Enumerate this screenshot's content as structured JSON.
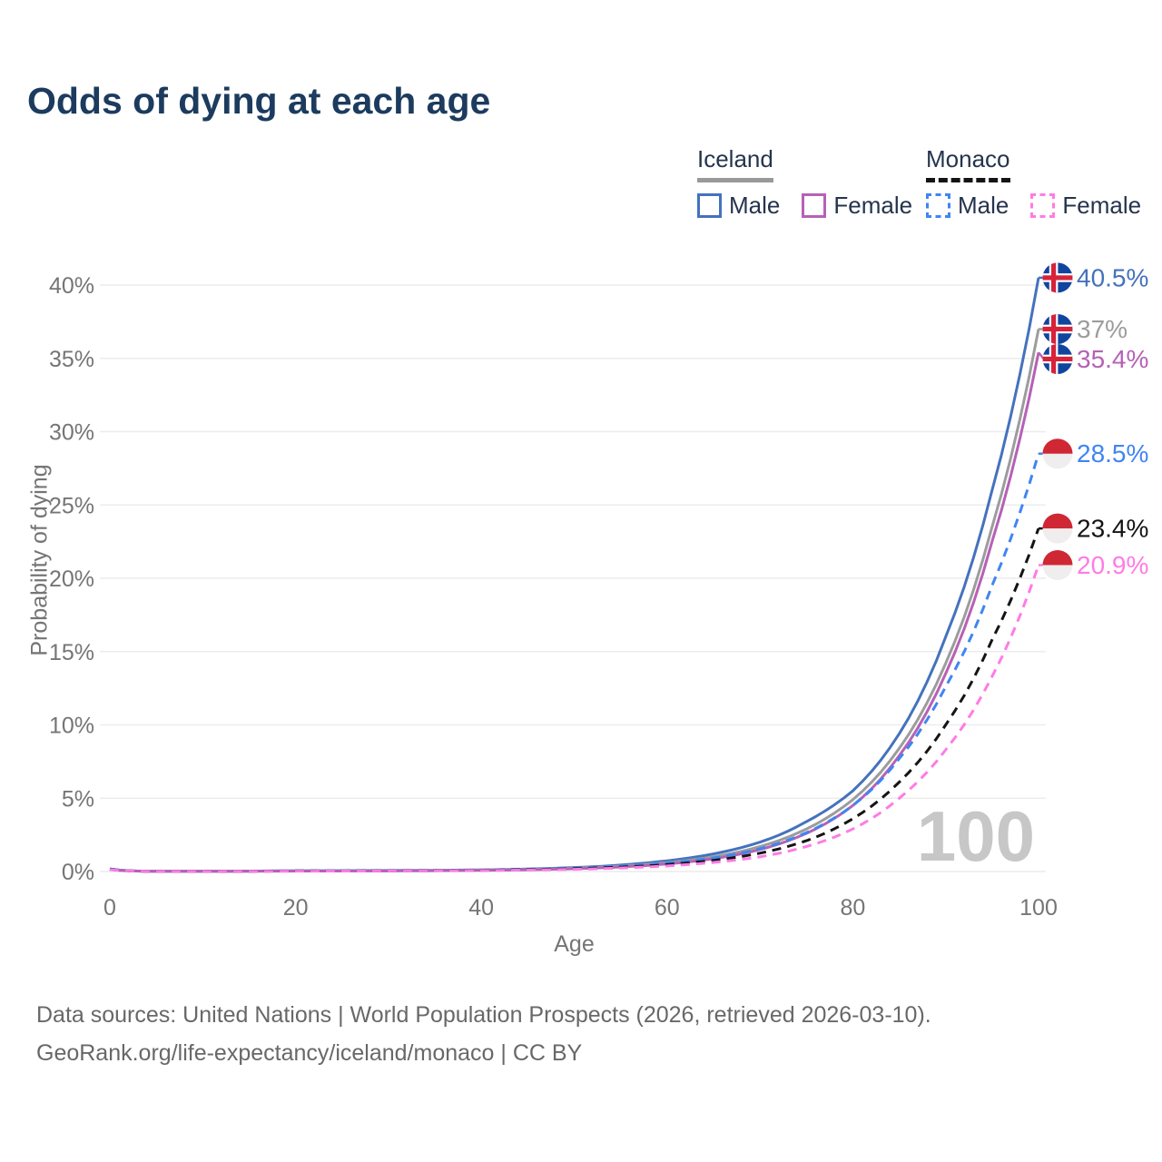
{
  "title": "Odds of dying at each age",
  "legend": {
    "groups": [
      {
        "country": "Iceland",
        "line_style": "solid",
        "underline_color": "#999999",
        "items": [
          {
            "label": "Male",
            "color": "#4472bd"
          },
          {
            "label": "Female",
            "color": "#b661b6"
          }
        ]
      },
      {
        "country": "Monaco",
        "line_style": "dashed",
        "underline_color": "#141414",
        "items": [
          {
            "label": "Male",
            "color": "#3f85f2"
          },
          {
            "label": "Female",
            "color": "#ff7be5"
          }
        ]
      }
    ]
  },
  "chart_data": {
    "type": "line",
    "title": "Odds of dying at each age",
    "xlabel": "Age",
    "ylabel": "Probability of dying",
    "xlim": [
      0,
      100
    ],
    "ylim": [
      0,
      42
    ],
    "x_ticks": [
      "0",
      "20",
      "40",
      "60",
      "80",
      "100"
    ],
    "y_ticks": [
      "0%",
      "5%",
      "10%",
      "15%",
      "20%",
      "25%",
      "30%",
      "35%",
      "40%"
    ],
    "grid": "horizontal",
    "legend_position": "top-right",
    "watermark_age": "100",
    "ages": [
      0,
      5,
      10,
      15,
      20,
      25,
      30,
      35,
      40,
      45,
      50,
      55,
      60,
      65,
      70,
      75,
      80,
      85,
      90,
      95,
      100
    ],
    "series": [
      {
        "name": "Iceland Male",
        "country": "iceland",
        "sex": "Male",
        "line_style": "solid",
        "color": "#4472bd",
        "end_label": "40.5%",
        "values": [
          0.18,
          0.01,
          0.01,
          0.03,
          0.05,
          0.06,
          0.07,
          0.08,
          0.11,
          0.17,
          0.27,
          0.44,
          0.73,
          1.2,
          2.0,
          3.4,
          5.5,
          9.4,
          16.0,
          26.0,
          40.5
        ]
      },
      {
        "name": "Iceland Both sexes",
        "country": "iceland",
        "sex": "Both sexes",
        "line_style": "solid",
        "color": "#9c9c9c",
        "end_label": "37%",
        "values": [
          0.16,
          0.01,
          0.01,
          0.025,
          0.04,
          0.05,
          0.055,
          0.07,
          0.09,
          0.14,
          0.23,
          0.37,
          0.61,
          1.0,
          1.7,
          2.9,
          4.9,
          8.4,
          14.2,
          23.5,
          37.0
        ]
      },
      {
        "name": "Iceland Female",
        "country": "iceland",
        "sex": "Female",
        "line_style": "solid",
        "color": "#b661b6",
        "end_label": "35.4%",
        "values": [
          0.14,
          0.01,
          0.01,
          0.02,
          0.03,
          0.035,
          0.04,
          0.055,
          0.08,
          0.12,
          0.19,
          0.31,
          0.52,
          0.87,
          1.5,
          2.6,
          4.5,
          7.9,
          13.5,
          22.5,
          35.4
        ]
      },
      {
        "name": "Monaco Male",
        "country": "monaco",
        "sex": "Male",
        "line_style": "dashed",
        "color": "#3f85f2",
        "end_label": "28.5%",
        "values": [
          0.17,
          0.01,
          0.01,
          0.025,
          0.045,
          0.05,
          0.06,
          0.07,
          0.1,
          0.15,
          0.23,
          0.36,
          0.57,
          0.93,
          1.55,
          2.65,
          4.5,
          7.7,
          12.6,
          19.5,
          28.5
        ]
      },
      {
        "name": "Monaco Both sexes",
        "country": "monaco",
        "sex": "Both sexes",
        "line_style": "dashed",
        "color": "#141414",
        "end_label": "23.4%",
        "values": [
          0.15,
          0.008,
          0.008,
          0.02,
          0.035,
          0.04,
          0.05,
          0.06,
          0.085,
          0.13,
          0.19,
          0.3,
          0.47,
          0.76,
          1.25,
          2.1,
          3.6,
          6.1,
          10.0,
          15.8,
          23.4
        ]
      },
      {
        "name": "Monaco Female",
        "country": "monaco",
        "sex": "Female",
        "line_style": "dashed",
        "color": "#ff7be5",
        "end_label": "20.9%",
        "values": [
          0.13,
          0.007,
          0.007,
          0.015,
          0.025,
          0.03,
          0.04,
          0.05,
          0.07,
          0.1,
          0.15,
          0.24,
          0.38,
          0.62,
          1.0,
          1.7,
          2.9,
          5.0,
          8.3,
          13.3,
          20.9
        ]
      }
    ],
    "flags": {
      "iceland": {
        "type": "nordic-cross",
        "field": "#10459e",
        "cross": "#d7233a",
        "fimbriation": "#ffffff"
      },
      "monaco": {
        "type": "bicolor",
        "top": "#cf2734",
        "bottom": "#efeded"
      }
    },
    "colors": {
      "grid": "#ececec",
      "axis_text": "#757575",
      "watermark": "#c7c7c7"
    }
  },
  "footer": {
    "line1": "Data sources: United Nations | World Population Prospects (2026, retrieved 2026-03-10).",
    "line2": "GeoRank.org/life-expectancy/iceland/monaco | CC BY"
  }
}
